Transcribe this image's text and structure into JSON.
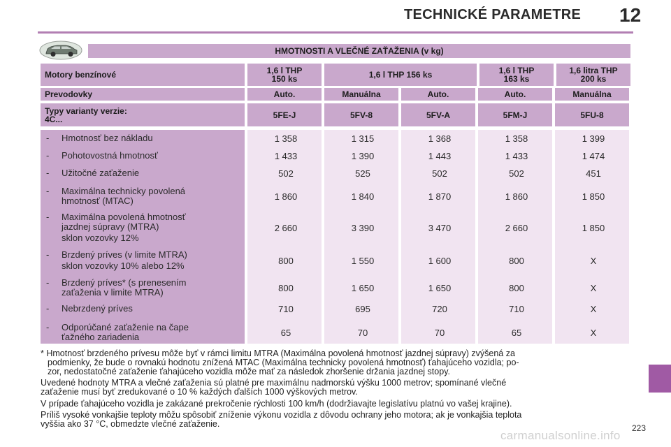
{
  "header": {
    "title": "TECHNICKÉ PARAMETRE",
    "chapter": "12"
  },
  "table": {
    "title": "HMOTNOSTI A VLEČNÉ ZAŤAŽENIA (v kg)",
    "engines_label": "Motory benzínové",
    "engines": [
      "1,6 l THP\n150 ks",
      "1,6 l THP 156 ks",
      "1,6 l THP\n163 ks",
      "1,6 litra THP\n200 ks"
    ],
    "gearbox_label": "Prevodovky",
    "gearboxes": [
      "Auto.",
      "Manuálna",
      "Auto.",
      "Auto.",
      "Manuálna"
    ],
    "variants_label": "Typy varianty verzie:\n4C...",
    "variants": [
      "5FE-J",
      "5FV-8",
      "5FV-A",
      "5FM-J",
      "5FU-8"
    ],
    "rows": [
      {
        "dash": "-",
        "label": "Hmotnosť bez nákladu",
        "values": [
          "1 358",
          "1 315",
          "1 368",
          "1 358",
          "1 399"
        ]
      },
      {
        "dash": "-",
        "label": "Pohotovostná hmotnosť",
        "values": [
          "1 433",
          "1 390",
          "1 443",
          "1 433",
          "1 474"
        ]
      },
      {
        "dash": "-",
        "label": "Užitočné zaťaženie",
        "values": [
          "502",
          "525",
          "502",
          "502",
          "451"
        ]
      },
      {
        "dash": "-",
        "label": "Maximálna technicky povolená",
        "label2": "hmotnosť (MTAC)",
        "values": [
          "1 860",
          "1 840",
          "1 870",
          "1 860",
          "1 850"
        ]
      },
      {
        "dash": "-",
        "label": "Maximálna povolená hmotnosť",
        "label2": "jazdnej súpravy (MTRA)",
        "label3": "sklon vozovky 12%",
        "values": [
          "2 660",
          "3 390",
          "3 470",
          "2 660",
          "1 850"
        ]
      },
      {
        "dash": "-",
        "label": "Brzdený príves (v limite MTRA)",
        "label2": "sklon vozovky 10% alebo 12%",
        "values": [
          "800",
          "1 550",
          "1 600",
          "800",
          "X"
        ]
      },
      {
        "dash": "-",
        "label": "Brzdený príves* (s prenesením",
        "label2": "zaťaženia v limite MTRA)",
        "values": [
          "800",
          "1 650",
          "1 650",
          "800",
          "X"
        ]
      },
      {
        "dash": "-",
        "label": "Nebrzdený príves",
        "values": [
          "710",
          "695",
          "720",
          "710",
          "X"
        ]
      },
      {
        "dash": "-",
        "label": "Odporúčané zaťaženie na čape",
        "label2": "ťažného zariadenia",
        "values": [
          "65",
          "70",
          "70",
          "65",
          "X"
        ]
      }
    ]
  },
  "notes": {
    "n1_line1": "* Hmotnosť brzdeného prívesu môže byť v rámci limitu MTRA (Maximálna povolená hmotnosť jazdnej súpravy) zvýšená za",
    "n1_line2": "podmienky, že bude o rovnakú hodnotu znížená MTAC (Maximálna technicky povolená hmotnosť) ťahajúceho vozidla; po-",
    "n1_line3": "zor, nedostatočné zaťaženie ťahajúceho vozidla môže mať za následok zhoršenie držania jazdnej stopy.",
    "n2_line1": "Uvedené hodnoty MTRA a vlečné zaťaženia sú platné pre maximálnu nadmorskú výšku 1000 metrov; spomínané vlečné",
    "n2_line2": "zaťaženie musí byť zredukované o 10 % každých ďalších 1000 výškových metrov.",
    "n3": "V prípade ťahajúceho vozidla je zakázané prekročenie rýchlosti 100 km/h (dodržiavajte legislatívu platnú vo vašej krajine).",
    "n4_line1": "Príliš vysoké vonkajšie teploty môžu spôsobiť zníženie výkonu vozidla z dôvodu ochrany jeho motora; ak je vonkajšia teplota",
    "n4_line2": "vyššia ako 37 °C, obmedzte vlečné zaťaženie."
  },
  "page_number": "223",
  "watermark": "carmanualsonline.info",
  "icons": {
    "car": "car-icon"
  },
  "colors": {
    "accent": "#a05aa4",
    "header_fill": "#c9a8cc",
    "data_fill": "#f1e4f1"
  }
}
